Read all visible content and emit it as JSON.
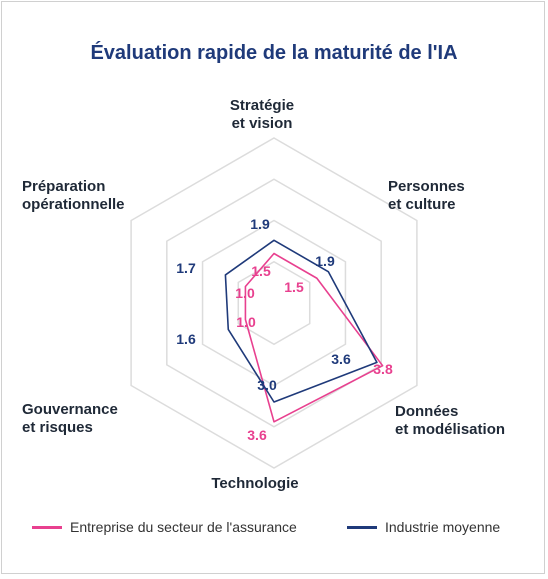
{
  "chart_data": {
    "type": "radar",
    "title": "Évaluation rapide de la maturité de l'IA",
    "axes": [
      [
        "Stratégie",
        "et vision"
      ],
      [
        "Personnes",
        "et culture"
      ],
      [
        "Données",
        "et modélisation"
      ],
      [
        "Technologie"
      ],
      [
        "Gouvernance",
        "et risques"
      ],
      [
        "Préparation",
        "opérationnelle"
      ]
    ],
    "rmax": 5,
    "rings": 4,
    "series": [
      {
        "name": "Entreprise du secteur de l'assurance",
        "color": "#e8408f",
        "values": [
          1.5,
          1.5,
          3.8,
          3.6,
          1.0,
          1.0
        ],
        "labels": [
          "1.5",
          "1.5",
          "3.8",
          "3.6",
          "1.0",
          "1.0"
        ]
      },
      {
        "name": "Industrie moyenne",
        "color": "#1f3a7a",
        "values": [
          1.9,
          1.9,
          3.6,
          3.0,
          1.6,
          1.7
        ],
        "labels": [
          "1.9",
          "1.9",
          "3.6",
          "3.0",
          "1.6",
          "1.7"
        ]
      }
    ],
    "legend_position": "bottom"
  }
}
